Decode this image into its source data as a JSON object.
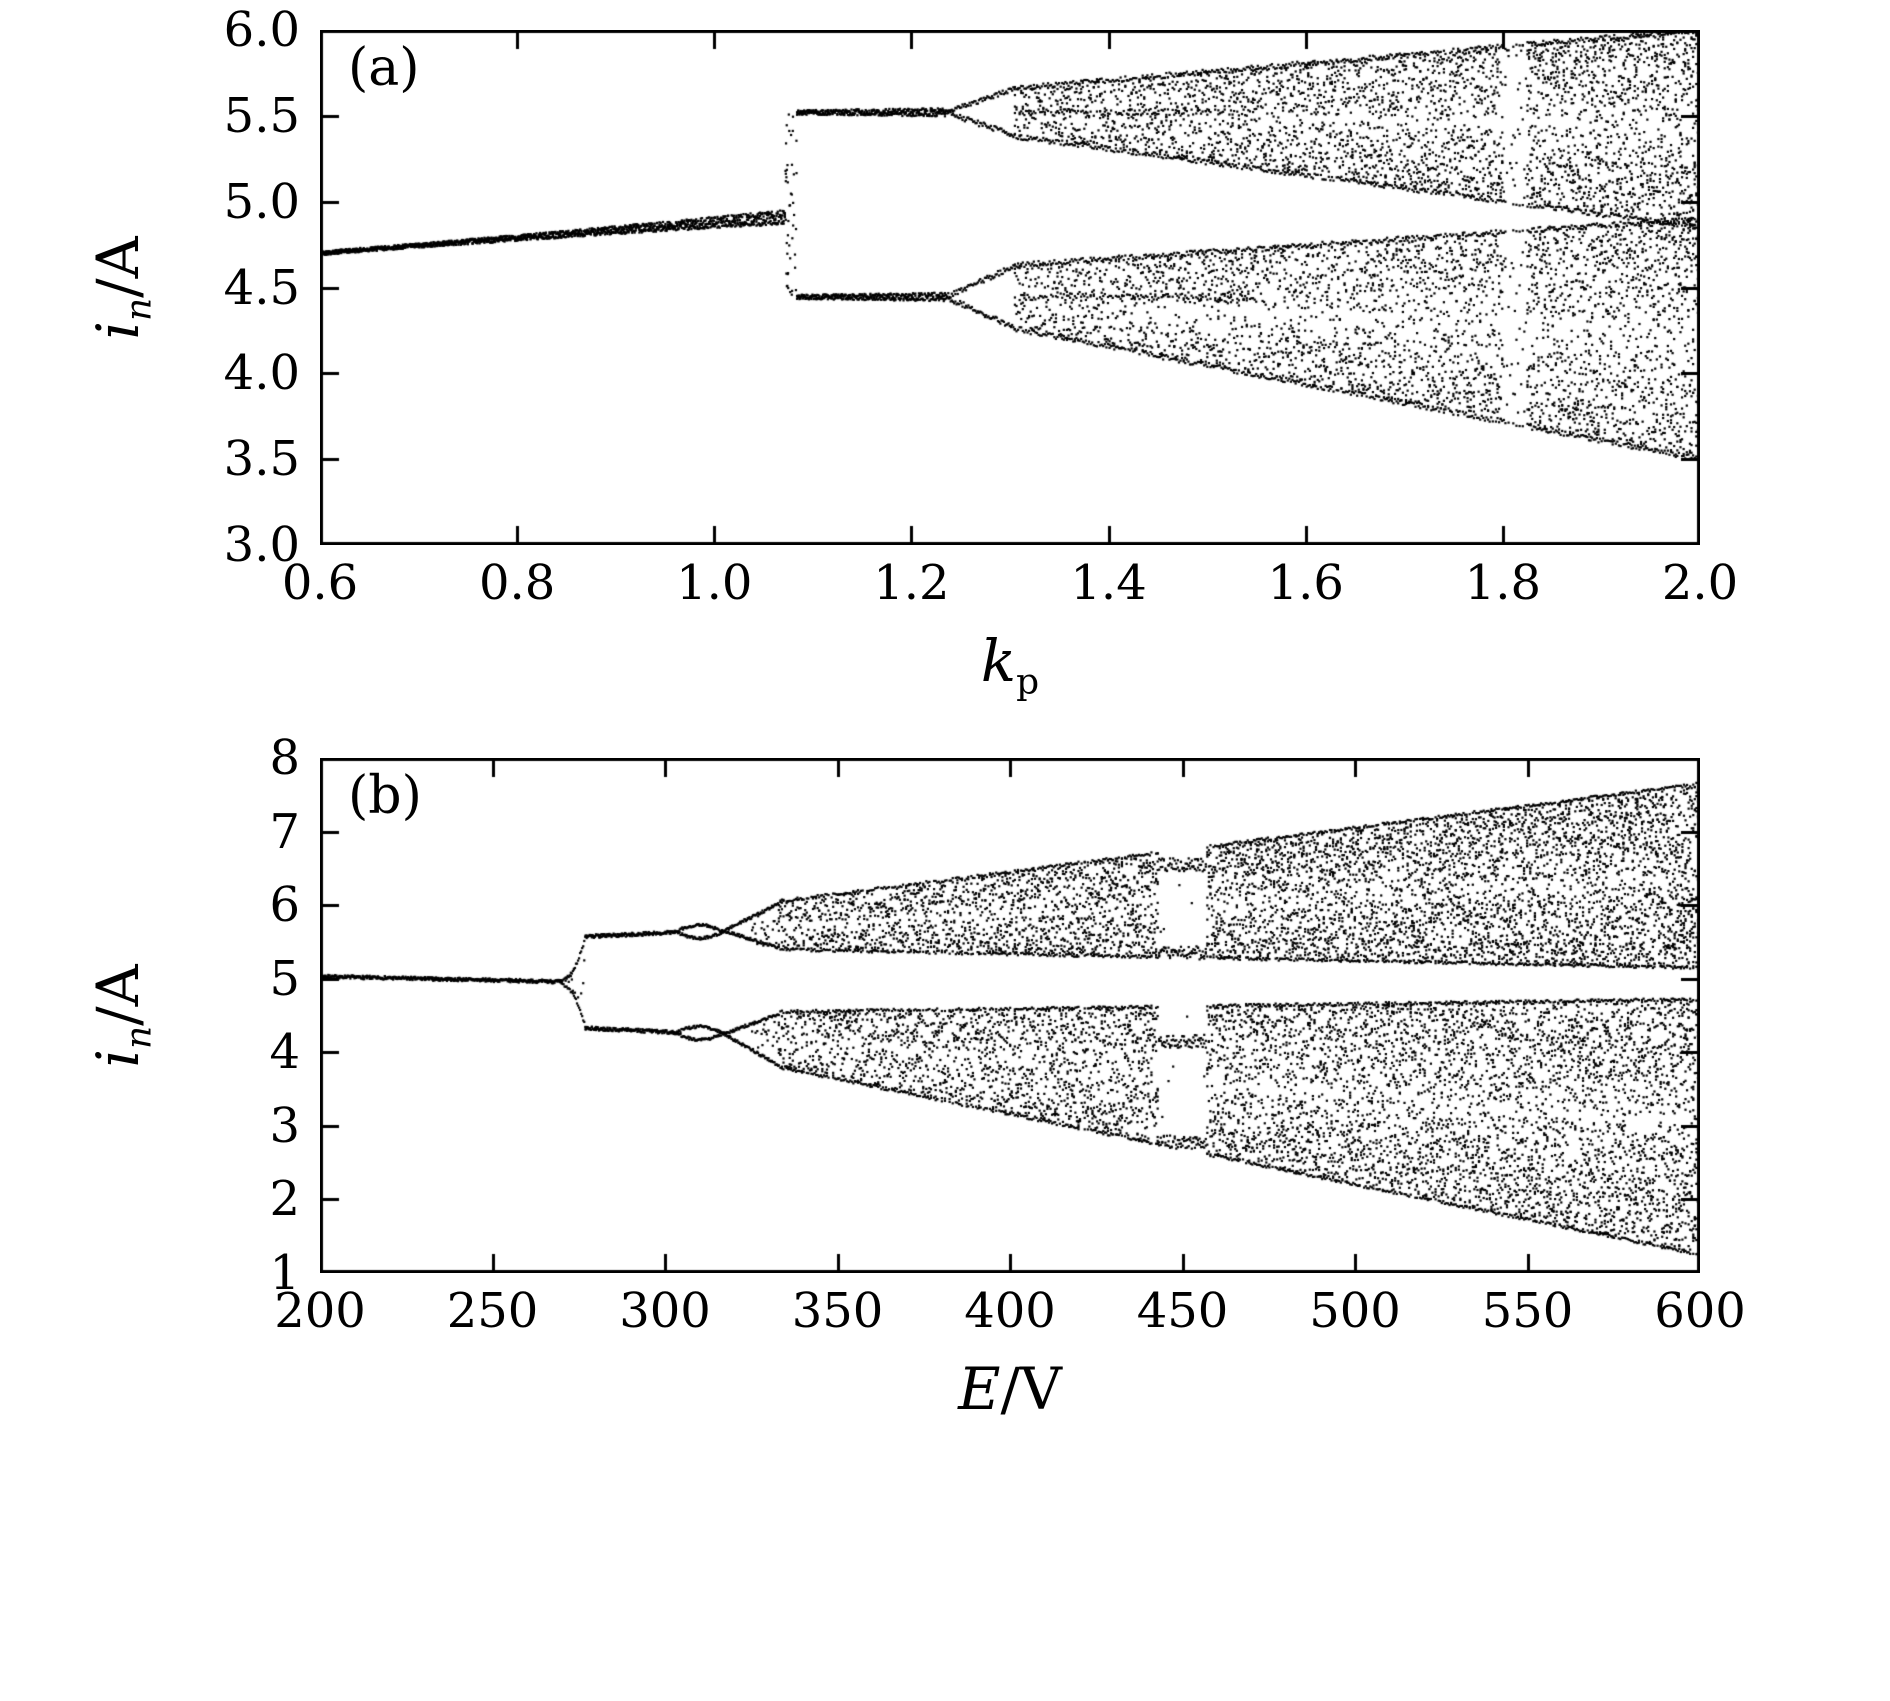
{
  "figure": {
    "background": "#ffffff",
    "point_color": "#000000",
    "frame_color": "#000000"
  },
  "chart_data": [
    {
      "id": "a",
      "type": "scatter",
      "chart_kind": "bifurcation-diagram",
      "panel_label": "(a)",
      "title": "",
      "xlabel_var": "k",
      "xlabel_sub": "p",
      "xlabel_unit": "",
      "ylabel_var": "i",
      "ylabel_sub": "n",
      "ylabel_unit": "/A",
      "xlim": [
        0.6,
        2.0
      ],
      "ylim": [
        3.0,
        6.0
      ],
      "xtick_values": [
        0.6,
        0.8,
        1.0,
        1.2,
        1.4,
        1.6,
        1.8,
        2.0
      ],
      "xtick_labels": [
        "0.6",
        "0.8",
        "1.0",
        "1.2",
        "1.4",
        "1.6",
        "1.8",
        "2.0"
      ],
      "ytick_values": [
        3.0,
        3.5,
        4.0,
        4.5,
        5.0,
        5.5,
        6.0
      ],
      "ytick_labels": [
        "3.0",
        "3.5",
        "4.0",
        "4.5",
        "5.0",
        "5.5",
        "6.0"
      ],
      "grid": false,
      "legend": null,
      "seed": 42,
      "summary": "Period-1 branch rises from about 4.70 A at kp=0.6 to 4.91 A near kp=1.07, jumps at kp~1.08 to a period-2 orbit (branches near 5.52 A and 4.45 A), period-doubles again near kp=1.24, and becomes chaotic beyond kp~1.3 with two bands widening to span roughly 3.5-6.0 A at kp=2.0.",
      "structure": {
        "period1": {
          "x0": 0.6,
          "x1": 1.072,
          "y0": 4.7,
          "y1": 4.91
        },
        "transition_x": 1.078,
        "period2": {
          "x0": 1.084,
          "x1": 1.235,
          "upper": 5.52,
          "lower": 4.445
        },
        "period4": {
          "x0": 1.235,
          "x1": 1.305,
          "upper_split": [
            5.655,
            5.385
          ],
          "lower_split": [
            4.625,
            4.265
          ]
        },
        "chaos": {
          "x0": 1.305,
          "x1": 2.0,
          "upper_band_start": [
            5.38,
            5.66
          ],
          "upper_band_end": [
            4.85,
            6.0
          ],
          "lower_band_start": [
            4.26,
            4.63
          ],
          "lower_band_end": [
            3.5,
            4.9
          ],
          "windows": [
            [
              1.8,
              1.825
            ]
          ]
        }
      }
    },
    {
      "id": "b",
      "type": "scatter",
      "chart_kind": "bifurcation-diagram",
      "panel_label": "(b)",
      "title": "",
      "xlabel_var": "E",
      "xlabel_sub": "",
      "xlabel_unit": "/V",
      "ylabel_var": "i",
      "ylabel_sub": "n",
      "ylabel_unit": "/A",
      "xlim": [
        200,
        600
      ],
      "ylim": [
        1,
        8
      ],
      "xtick_values": [
        200,
        250,
        300,
        350,
        400,
        450,
        500,
        550,
        600
      ],
      "xtick_labels": [
        "200",
        "250",
        "300",
        "350",
        "400",
        "450",
        "500",
        "550",
        "600"
      ],
      "ytick_values": [
        1,
        2,
        3,
        4,
        5,
        6,
        7,
        8
      ],
      "ytick_labels": [
        "1",
        "2",
        "3",
        "4",
        "5",
        "6",
        "7",
        "8"
      ],
      "grid": false,
      "legend": null,
      "seed": 7,
      "summary": "Period-1 orbit near 5.0 A from E=200 V bifurcates near E~275 V into branches near 5.6 A and 4.3 A, shows period-doubling bubbles near 305-330 V, then two chaotic bands widen with E (upper band up to ~7.7 A, lower band down to ~1.3 A at 600 V) separated by a gap near 4.7-5.2 A; a periodic window with four branches (~6.55, 5.35, 4.15, 2.78 A) appears near E=450 V.",
      "structure": {
        "period1": {
          "x0": 200,
          "x1": 270,
          "y0": 5.03,
          "y1": 4.96
        },
        "fan": {
          "x0": 270,
          "x1": 277,
          "mid": 4.95,
          "spread": 0.62
        },
        "period2": {
          "x0": 277,
          "x1": 303,
          "upper0": 5.57,
          "upper1": 5.63,
          "lower0": 4.33,
          "lower1": 4.27
        },
        "bubble": {
          "x0": 303,
          "x1": 317,
          "upper_center": 5.64,
          "lower_center": 4.26,
          "amp": 0.09
        },
        "diverge": {
          "x0": 317,
          "x1": 333,
          "upper_center": 5.65,
          "upper_to": [
            6.02,
            5.42
          ],
          "lower_center": 4.25,
          "lower_to": [
            4.52,
            3.82
          ]
        },
        "chaos": {
          "x0": 333,
          "x1": 600,
          "upper_band_start": [
            5.4,
            6.05
          ],
          "upper_band_end": [
            5.15,
            7.65
          ],
          "lower_band_start": [
            3.8,
            4.55
          ],
          "lower_band_end": [
            1.25,
            4.72
          ],
          "window": [
            443,
            457
          ],
          "window_levels": [
            6.55,
            5.35,
            4.15,
            2.78
          ]
        }
      }
    }
  ]
}
